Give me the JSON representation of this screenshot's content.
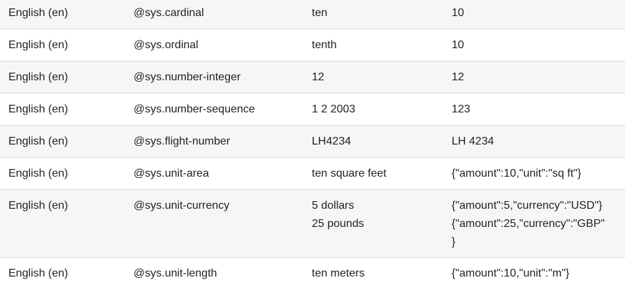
{
  "table": {
    "rows": [
      {
        "locale": "English (en)",
        "entity": "@sys.cardinal",
        "input": [
          "ten"
        ],
        "output": [
          "10"
        ]
      },
      {
        "locale": "English (en)",
        "entity": "@sys.ordinal",
        "input": [
          "tenth"
        ],
        "output": [
          "10"
        ]
      },
      {
        "locale": "English (en)",
        "entity": "@sys.number-integer",
        "input": [
          "12"
        ],
        "output": [
          "12"
        ]
      },
      {
        "locale": "English (en)",
        "entity": "@sys.number-sequence",
        "input": [
          "1 2 2003"
        ],
        "output": [
          "123"
        ]
      },
      {
        "locale": "English (en)",
        "entity": "@sys.flight-number",
        "input": [
          "LH4234"
        ],
        "output": [
          "LH 4234"
        ]
      },
      {
        "locale": "English (en)",
        "entity": "@sys.unit-area",
        "input": [
          "ten square feet"
        ],
        "output": [
          "{\"amount\":10,\"unit\":\"sq ft\"}"
        ]
      },
      {
        "locale": "English (en)",
        "entity": "@sys.unit-currency",
        "input": [
          "5 dollars",
          "25 pounds"
        ],
        "output": [
          "{\"amount\":5,\"currency\":\"USD\"}",
          "{\"amount\":25,\"currency\":\"GBP\"",
          "}"
        ]
      },
      {
        "locale": "English (en)",
        "entity": "@sys.unit-length",
        "input": [
          "ten meters"
        ],
        "output": [
          "{\"amount\":10,\"unit\":\"m\"}"
        ]
      }
    ]
  }
}
